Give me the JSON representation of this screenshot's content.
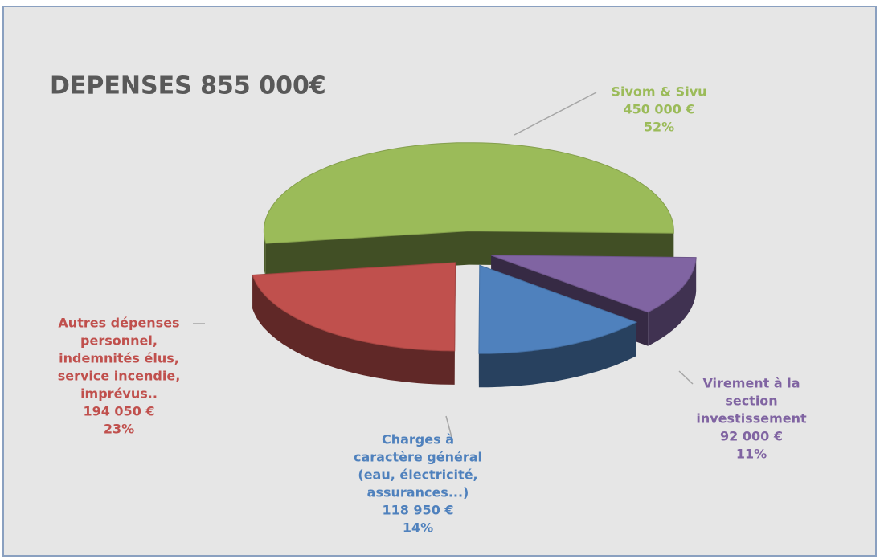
{
  "chart_data": {
    "type": "pie",
    "title": "DEPENSES 855 000€",
    "categories": [
      [
        "Sivom   & Sivu"
      ],
      [
        "Virement à la",
        "section",
        "investissement"
      ],
      [
        "Charges à",
        "caractère général",
        "(eau, électricité,",
        "assurances...)"
      ],
      [
        "Autres dépenses",
        "personnel,",
        "indemnités élus,",
        "service incendie,",
        "imprévus.."
      ]
    ],
    "values": [
      450000,
      92000,
      118950,
      194050
    ],
    "value_labels": [
      "450 000 €",
      "92 000 €",
      "118 950 €",
      "194 050 €"
    ],
    "percents": [
      52,
      11,
      14,
      23
    ],
    "percent_labels": [
      "52%",
      "11%",
      "14%",
      "23%"
    ],
    "colors": [
      "#9bbb59",
      "#8064a2",
      "#4f81bd",
      "#c0504d"
    ]
  }
}
